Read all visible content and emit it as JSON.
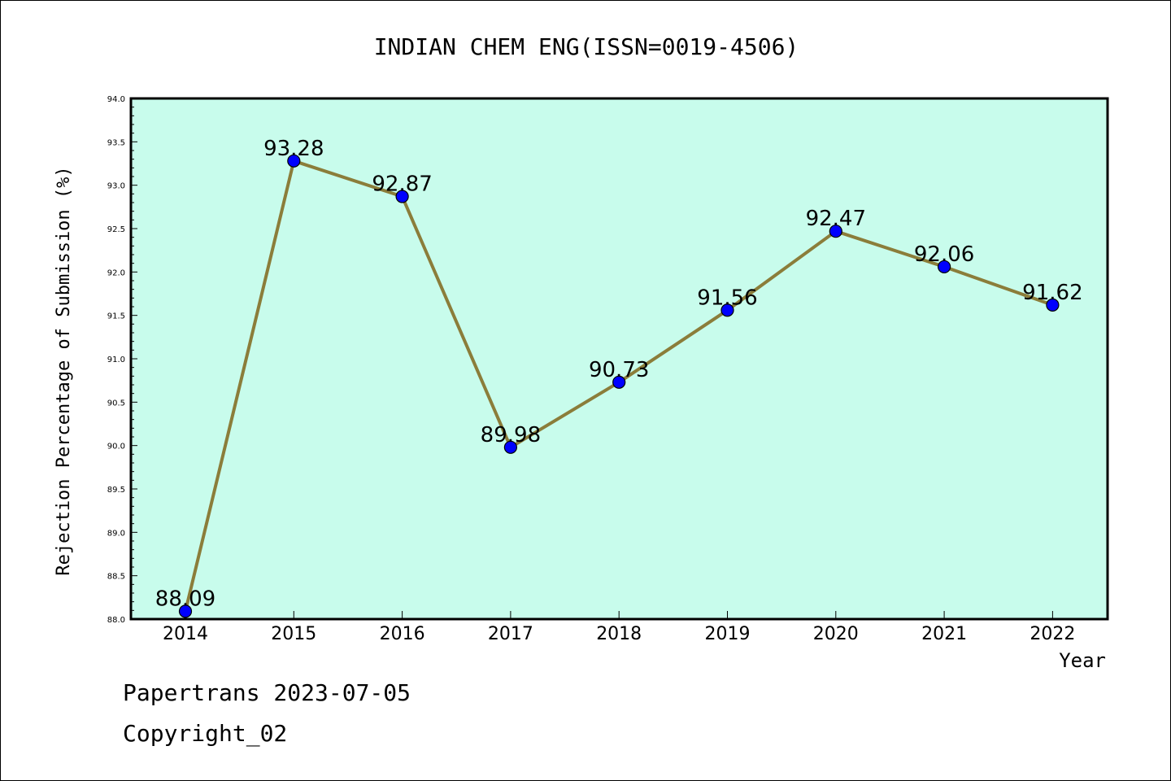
{
  "chart_data": {
    "type": "line",
    "title": "INDIAN CHEM ENG(ISSN=0019-4506)",
    "xlabel": "Year",
    "ylabel": "Rejection Percentage of Submission (%)",
    "categories": [
      "2014",
      "2015",
      "2016",
      "2017",
      "2018",
      "2019",
      "2020",
      "2021",
      "2022"
    ],
    "values": [
      88.09,
      93.28,
      92.87,
      89.98,
      90.73,
      91.56,
      92.47,
      92.06,
      91.62
    ],
    "data_labels": [
      "88.09",
      "93.28",
      "92.87",
      "89.98",
      "90.73",
      "91.56",
      "92.47",
      "92.06",
      "91.62"
    ],
    "ylim": [
      88.0,
      94.0
    ],
    "yticks": [
      "88.0",
      "88.5",
      "89.0",
      "89.5",
      "90.0",
      "90.5",
      "91.0",
      "91.5",
      "92.0",
      "92.5",
      "93.0",
      "93.5",
      "94.0"
    ],
    "grid": false,
    "legend": "none",
    "colors": {
      "plot_background": "#c8fcec",
      "line": "#8b7d3a",
      "marker": "#0000ff"
    }
  },
  "footer": {
    "line1": "Papertrans 2023-07-05",
    "line2": "Copyright_02"
  }
}
